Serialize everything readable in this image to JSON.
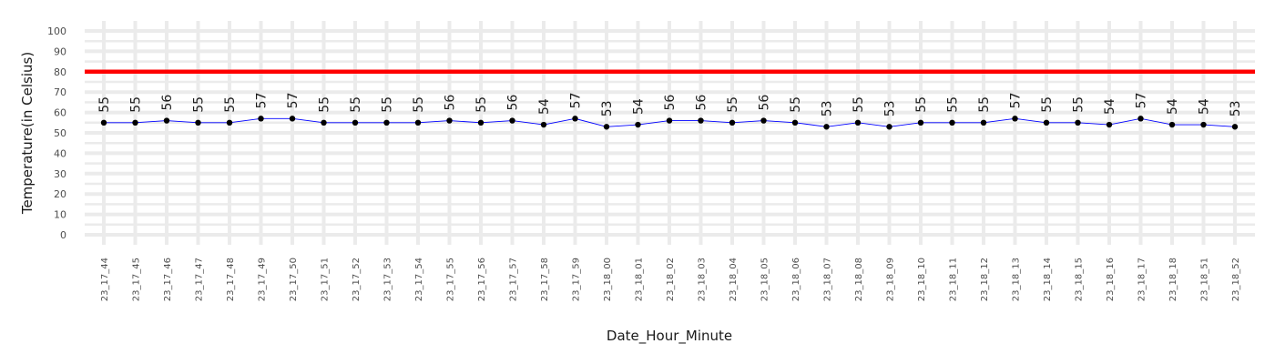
{
  "chart_data": {
    "type": "line",
    "title": "",
    "xlabel": "Date_Hour_Minute",
    "ylabel": "Temperature(in Celsius)",
    "ylim": [
      -5,
      105
    ],
    "yticks": [
      0,
      10,
      20,
      30,
      40,
      50,
      60,
      70,
      80,
      90,
      100
    ],
    "grid": true,
    "threshold": {
      "value": 80,
      "color": "#ff0000"
    },
    "line_color": "#0000ff",
    "point_color": "#000000",
    "categories": [
      "23_17_44",
      "23_17_45",
      "23_17_46",
      "23_17_47",
      "23_17_48",
      "23_17_49",
      "23_17_50",
      "23_17_51",
      "23_17_52",
      "23_17_53",
      "23_17_54",
      "23_17_55",
      "23_17_56",
      "23_17_57",
      "23_17_58",
      "23_17_59",
      "23_18_00",
      "23_18_01",
      "23_18_02",
      "23_18_03",
      "23_18_04",
      "23_18_05",
      "23_18_06",
      "23_18_07",
      "23_18_08",
      "23_18_09",
      "23_18_10",
      "23_18_11",
      "23_18_12",
      "23_18_13",
      "23_18_14",
      "23_18_15",
      "23_18_16",
      "23_18_17",
      "23_18_18",
      "23_18_51",
      "23_18_52"
    ],
    "values": [
      55,
      55,
      56,
      55,
      55,
      57,
      57,
      55,
      55,
      55,
      55,
      56,
      55,
      56,
      54,
      57,
      53,
      54,
      56,
      56,
      55,
      56,
      55,
      53,
      55,
      53,
      55,
      55,
      55,
      57,
      55,
      55,
      54,
      57,
      54,
      54,
      53
    ]
  }
}
